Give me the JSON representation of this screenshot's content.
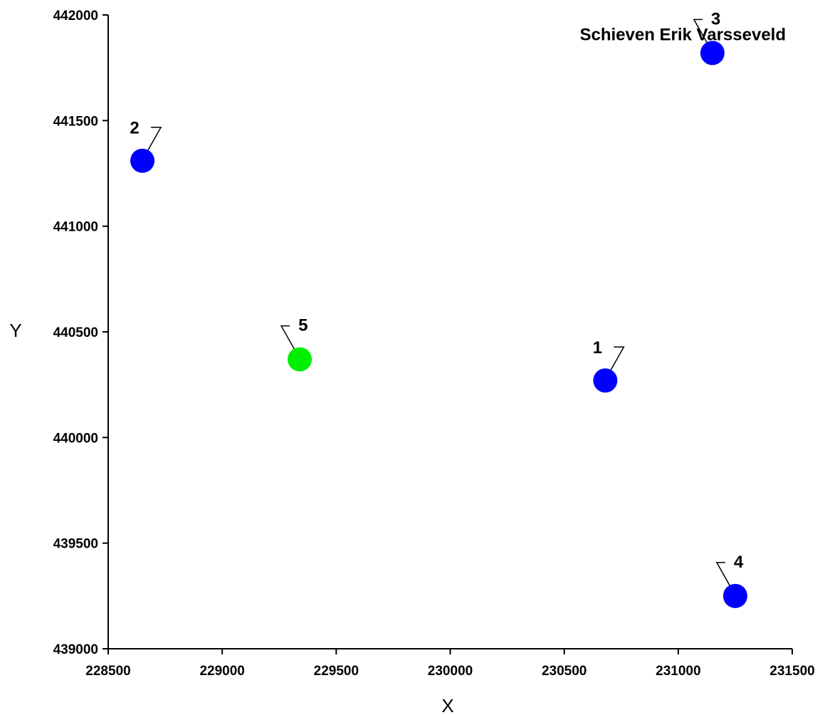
{
  "chart_data": {
    "type": "scatter",
    "title": "",
    "xlabel": "X",
    "ylabel": "Y",
    "xlim": [
      228500,
      231500
    ],
    "ylim": [
      439000,
      442000
    ],
    "xticks": [
      "228500",
      "229000",
      "229500",
      "230000",
      "230500",
      "231000",
      "231500"
    ],
    "yticks": [
      "439000",
      "439500",
      "440000",
      "440500",
      "441000",
      "441500",
      "442000"
    ],
    "grid": false,
    "points": [
      {
        "label": "1",
        "x": 230680,
        "y": 440270,
        "color": "#0000ff",
        "leader": "right"
      },
      {
        "label": "2",
        "x": 228650,
        "y": 441310,
        "color": "#0000ff",
        "leader": "right"
      },
      {
        "label": "3",
        "x": 231150,
        "y": 441820,
        "color": "#0000ff",
        "leader": "left"
      },
      {
        "label": "4",
        "x": 231250,
        "y": 439250,
        "color": "#0000ff",
        "leader": "left"
      },
      {
        "label": "5",
        "x": 229340,
        "y": 440370,
        "color": "#00ee00",
        "leader": "left"
      }
    ],
    "annotations": [
      {
        "text": "Schieven Erik Varsseveld",
        "x": 231020,
        "y": 441880
      }
    ]
  }
}
